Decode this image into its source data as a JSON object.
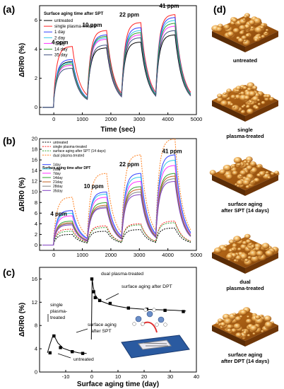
{
  "panels": {
    "a": "(a)",
    "b": "(b)",
    "c": "(c)",
    "d": "(d)"
  },
  "chart_data": [
    {
      "id": "a",
      "type": "line",
      "xlabel": "Time (sec)",
      "ylabel": "ΔR/R0 (%)",
      "xlim": [
        -500,
        5000
      ],
      "ylim": [
        -0.5,
        7
      ],
      "xticks": [
        0,
        1000,
        2000,
        3000,
        4000,
        5000
      ],
      "yticks": [
        0,
        2,
        4,
        6
      ],
      "legend_title": "Surface aging time after SPT",
      "annotations": [
        {
          "text": "4 ppm",
          "x": -80,
          "y": 4.35
        },
        {
          "text": "10 ppm",
          "x": 1000,
          "y": 5.55
        },
        {
          "text": "22 ppm",
          "x": 2300,
          "y": 6.25
        },
        {
          "text": "41 ppm",
          "x": 3700,
          "y": 6.85
        }
      ],
      "pulses": [
        [
          0,
          650
        ],
        [
          1200,
          1850
        ],
        [
          2400,
          3050
        ],
        [
          3600,
          4250
        ]
      ],
      "series": [
        {
          "name": "untreated",
          "color": "#000000",
          "dash": "",
          "peaks": [
            3.15,
            4.1,
            4.5,
            5.0
          ]
        },
        {
          "name": "single plasma-treated",
          "color": "#ff2020",
          "dash": "",
          "peaks": [
            4.2,
            5.3,
            5.85,
            6.4
          ]
        },
        {
          "name": "1 day",
          "color": "#3040ff",
          "dash": "",
          "peaks": [
            3.3,
            5.0,
            5.5,
            6.2
          ]
        },
        {
          "name": "2 day",
          "color": "#30c8e8",
          "dash": "",
          "peaks": [
            3.1,
            4.8,
            5.3,
            6.0
          ]
        },
        {
          "name": "7 day",
          "color": "#ff30ff",
          "dash": "",
          "peaks": [
            2.9,
            4.7,
            5.0,
            5.6
          ]
        },
        {
          "name": "14 day",
          "color": "#30a030",
          "dash": "",
          "peaks": [
            3.0,
            4.9,
            5.15,
            5.8
          ]
        },
        {
          "name": "35 day",
          "color": "#405080",
          "dash": "",
          "peaks": [
            2.7,
            4.3,
            4.8,
            5.3
          ]
        }
      ]
    },
    {
      "id": "b",
      "type": "line",
      "xlabel": "Time (sec)",
      "ylabel": "ΔR/R0 (%)",
      "xlim": [
        -500,
        5000
      ],
      "ylim": [
        -1,
        20
      ],
      "xticks": [
        0,
        1000,
        2000,
        3000,
        4000,
        5000
      ],
      "yticks": [
        0,
        2,
        4,
        6,
        8,
        10,
        12,
        14,
        16,
        18,
        20
      ],
      "legend_title": "Surface aging time after DPT",
      "annotations": [
        {
          "text": "4 ppm",
          "x": -120,
          "y": 5.5
        },
        {
          "text": "10 ppm",
          "x": 1050,
          "y": 10.7
        },
        {
          "text": "22 ppm",
          "x": 2300,
          "y": 14.8
        },
        {
          "text": "41 ppm",
          "x": 3800,
          "y": 17.3
        }
      ],
      "pulses": [
        [
          0,
          650
        ],
        [
          1200,
          1850
        ],
        [
          2400,
          3050
        ],
        [
          3600,
          4250
        ]
      ],
      "series": [
        {
          "name": "untreated",
          "color": "#000000",
          "dash": "2,1.5",
          "peaks": [
            2.0,
            2.6,
            2.9,
            3.2
          ]
        },
        {
          "name": "single plasma-treated",
          "color": "#ff2020",
          "dash": "2,1.5",
          "peaks": [
            3.0,
            3.6,
            4.0,
            4.5
          ]
        },
        {
          "name": "surface aging after SPT (14 days)",
          "color": "#30a030",
          "dash": "2,1.5",
          "peaks": [
            2.6,
            3.3,
            3.8,
            4.2
          ]
        },
        {
          "name": "dual plasma-treated",
          "color": "#ff8020",
          "dash": "2,1.5",
          "peaks": [
            9.0,
            13.5,
            17.0,
            20.0
          ]
        },
        {
          "name": "1day",
          "color": "#3040ff",
          "dash": "",
          "peaks": [
            6.5,
            10.0,
            13.5,
            17.0
          ]
        },
        {
          "name": "2day",
          "color": "#30c8e8",
          "dash": "",
          "peaks": [
            6.0,
            9.6,
            12.8,
            16.0
          ]
        },
        {
          "name": "7day",
          "color": "#ff30ff",
          "dash": "",
          "peaks": [
            5.5,
            9.0,
            12.0,
            15.0
          ]
        },
        {
          "name": "14day",
          "color": "#30a030",
          "dash": "",
          "peaks": [
            4.5,
            8.0,
            11.0,
            13.5
          ]
        },
        {
          "name": "21day",
          "color": "#c06020",
          "dash": "",
          "peaks": [
            4.2,
            7.5,
            10.5,
            13.0
          ]
        },
        {
          "name": "28day",
          "color": "#808080",
          "dash": "",
          "peaks": [
            4.0,
            7.2,
            10.0,
            12.5
          ]
        },
        {
          "name": "35day",
          "color": "#8040c0",
          "dash": "",
          "peaks": [
            3.8,
            7.0,
            9.5,
            12.0
          ]
        }
      ]
    },
    {
      "id": "c",
      "type": "scatter",
      "xlabel": "Surface aging time (day)",
      "ylabel": "ΔR/R0 (%)",
      "xlim": [
        -20,
        40
      ],
      "ylim": [
        0,
        18
      ],
      "xticks": [
        -10,
        0,
        10,
        20,
        30,
        40
      ],
      "yticks": [
        0,
        4,
        8,
        12,
        16
      ],
      "xtick_labels": [
        "-10",
        "0",
        "10",
        "20",
        "30",
        "40"
      ],
      "points": [
        {
          "x": -16,
          "y": 3.3
        },
        {
          "x": -14.5,
          "y": 6.2
        },
        {
          "x": -12,
          "y": 4.2
        },
        {
          "x": -7.5,
          "y": 3.5
        },
        {
          "x": -3.5,
          "y": 3.2
        },
        {
          "x": 0,
          "y": 16.0
        },
        {
          "x": 0.7,
          "y": 13.8
        },
        {
          "x": 1.3,
          "y": 12.8
        },
        {
          "x": 3,
          "y": 12.3
        },
        {
          "x": 7,
          "y": 11.8
        },
        {
          "x": 14,
          "y": 11.0
        },
        {
          "x": 21,
          "y": 10.8
        },
        {
          "x": 28,
          "y": 10.6
        },
        {
          "x": 35,
          "y": 10.4
        }
      ],
      "curves": [
        {
          "x": [
            -17,
            -16,
            -15,
            -14.5,
            -13,
            -11,
            -8,
            -5,
            -2
          ],
          "y": [
            3.3,
            4.8,
            6.1,
            6.3,
            5.0,
            4.1,
            3.6,
            3.3,
            3.2
          ]
        },
        {
          "x": [
            -0.2,
            0.1,
            0.6,
            1.3,
            2.5,
            4,
            7,
            10,
            14,
            20,
            26,
            32,
            36
          ],
          "y": [
            5.6,
            16.0,
            14.5,
            13.2,
            12.5,
            12.1,
            11.6,
            11.3,
            11.0,
            10.8,
            10.7,
            10.6,
            10.5
          ]
        }
      ],
      "annotations": [
        {
          "id": "dual",
          "text": "dual plasma-treated"
        },
        {
          "id": "after-dpt",
          "text": "surface aging after DPT"
        },
        {
          "id": "single1",
          "text": "single"
        },
        {
          "id": "single2",
          "text": "plasma-"
        },
        {
          "id": "single3",
          "text": "treated"
        },
        {
          "id": "spt1",
          "text": "surface aging"
        },
        {
          "id": "spt2",
          "text": "after SPT"
        },
        {
          "id": "untreated",
          "text": "untreated"
        }
      ]
    }
  ],
  "images": [
    {
      "label_lines": [
        "untreated"
      ]
    },
    {
      "label_lines": [
        "single",
        "plasma-treated"
      ]
    },
    {
      "label_lines": [
        "surface aging",
        "after SPT (14 days)"
      ]
    },
    {
      "label_lines": [
        "dual",
        "plasma-treated"
      ]
    },
    {
      "label_lines": [
        "surface aging",
        "after DPT (14 days)"
      ]
    }
  ],
  "colors": {
    "afm_dark": "#8a4a10",
    "afm_mid": "#d88a2a",
    "afm_light": "#ffe9a8",
    "inset_board": "#2a5aa0"
  }
}
